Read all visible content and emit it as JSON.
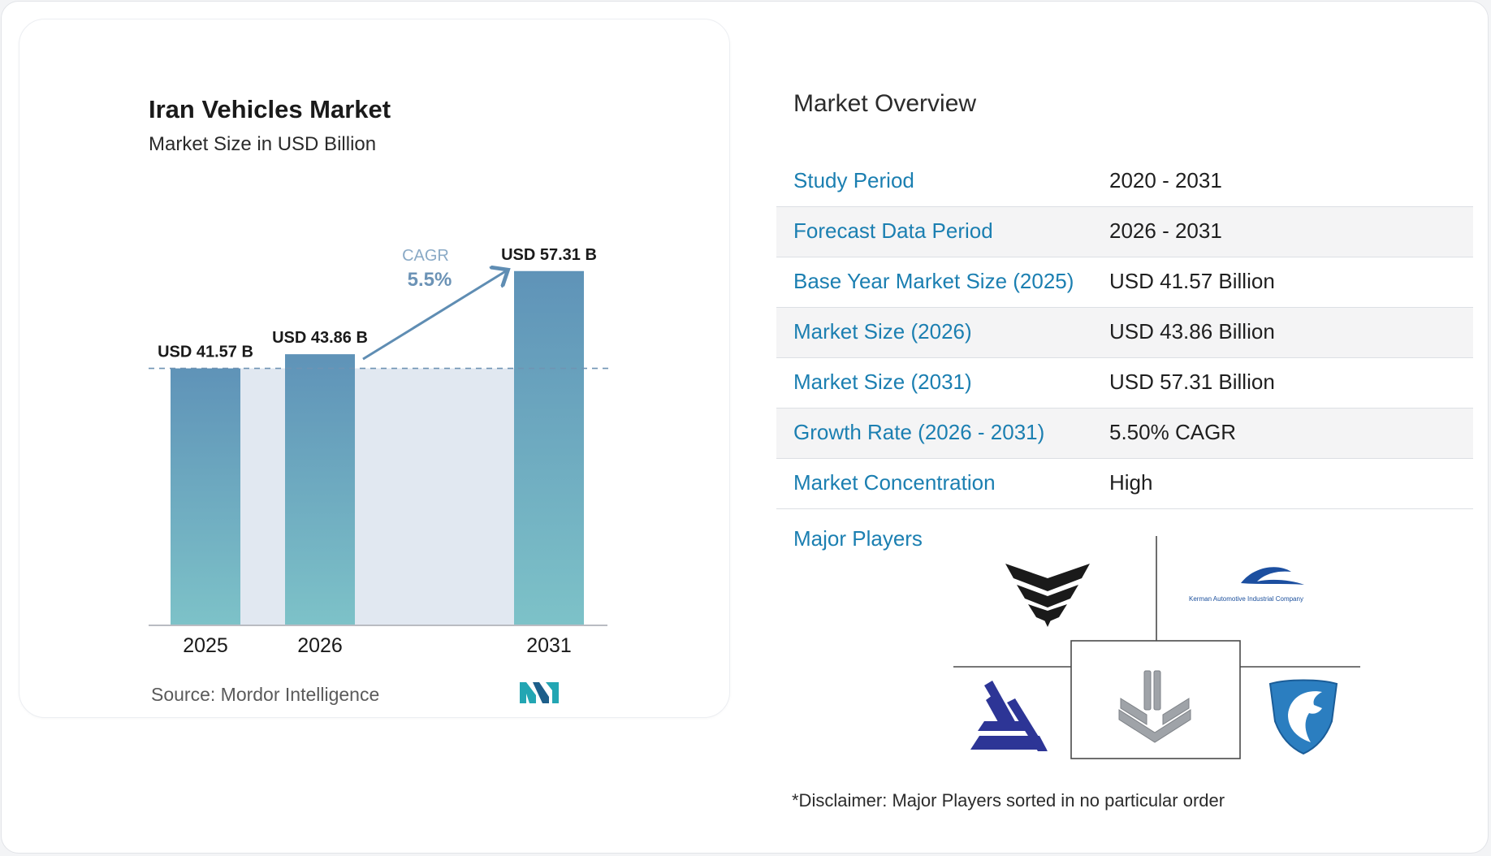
{
  "chart": {
    "title": "Iran Vehicles Market",
    "subtitle": "Market Size in USD Billion",
    "source_label": "Source:",
    "source_name": "Mordor Intelligence",
    "cagr_label": "CAGR",
    "cagr_value": "5.5%"
  },
  "chart_data": {
    "type": "bar",
    "title": "Iran Vehicles Market",
    "subtitle": "Market Size in USD Billion",
    "categories": [
      "2025",
      "2026",
      "2031"
    ],
    "values": [
      41.57,
      43.86,
      57.31
    ],
    "data_labels": [
      "USD 41.57 B",
      "USD 43.86 B",
      "USD 57.31 B"
    ],
    "annotation": "CAGR 5.5%",
    "ylim": [
      0,
      60
    ],
    "grid": false,
    "colors": {
      "bar_top": "#5f93b8",
      "bar_bottom": "#7dc2c8",
      "band": "#e1e8f1",
      "dashed": "#6f93b3",
      "arrow": "#5f8db3"
    }
  },
  "overview": {
    "title": "Market Overview",
    "rows": [
      {
        "label": "Study Period",
        "value": "2020 - 2031"
      },
      {
        "label": "Forecast Data Period",
        "value": "2026 - 2031"
      },
      {
        "label": "Base Year Market Size (2025)",
        "value": "USD 41.57 Billion"
      },
      {
        "label": "Market Size (2026)",
        "value": "USD 43.86 Billion"
      },
      {
        "label": "Market Size (2031)",
        "value": "USD 57.31 Billion"
      },
      {
        "label": "Growth Rate (2026 - 2031)",
        "value": "5.50% CAGR"
      },
      {
        "label": "Market Concentration",
        "value": "High"
      }
    ],
    "players_label": "Major Players",
    "kerman_logo_text": "Kerman Automotive Industrial Company",
    "disclaimer": "*Disclaimer: Major Players sorted in no particular order"
  },
  "colors": {
    "accent": "#1b7fb1",
    "card_border": "#eceef2"
  }
}
